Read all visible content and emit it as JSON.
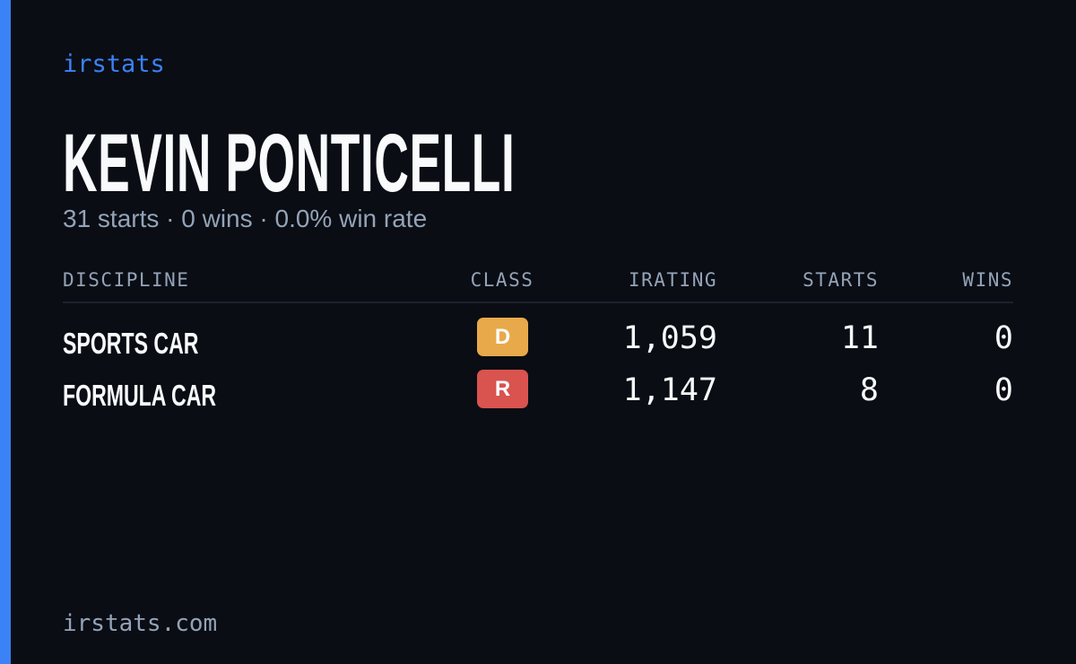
{
  "header": {
    "brand": "irstats",
    "name": "KEVIN PONTICELLI",
    "subtitle": "31 starts · 0 wins · 0.0% win rate"
  },
  "table": {
    "columns": [
      "DISCIPLINE",
      "CLASS",
      "IRATING",
      "STARTS",
      "WINS"
    ],
    "rows": [
      [
        "SPORTS CAR",
        "D",
        "1,059",
        "11",
        "0"
      ],
      [
        "FORMULA CAR",
        "R",
        "1,147",
        "8",
        "0"
      ]
    ]
  },
  "footer": {
    "url": "irstats.com"
  }
}
